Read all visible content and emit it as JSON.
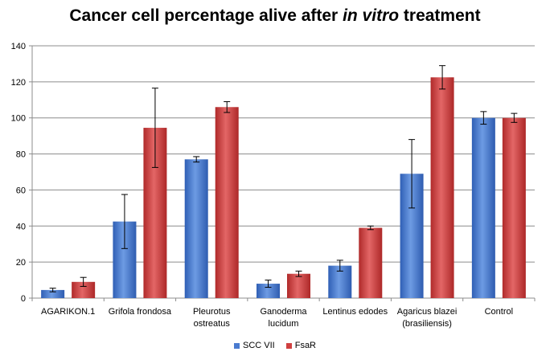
{
  "chart_data": {
    "type": "bar",
    "title_prefix": "Cancer cell percentage alive after ",
    "title_italic": "in vitro",
    "title_suffix": " treatment",
    "xlabel": "",
    "ylabel": "",
    "ylim": [
      0,
      140
    ],
    "yticks": [
      0,
      20,
      40,
      60,
      80,
      100,
      120,
      140
    ],
    "grid": true,
    "legend_position": "bottom",
    "categories": [
      [
        "AGARIKON.1"
      ],
      [
        "Grifola frondosa"
      ],
      [
        "Pleurotus",
        "ostreatus"
      ],
      [
        "Ganoderma",
        "lucidum"
      ],
      [
        "Lentinus edodes"
      ],
      [
        "Agaricus blazei",
        "(brasiliensis)"
      ],
      [
        "Control"
      ]
    ],
    "series": [
      {
        "name": "SCC VII",
        "color": "#4a7bd0",
        "values": [
          4.5,
          42.5,
          77,
          8,
          18,
          69,
          100
        ],
        "errors": [
          1,
          15,
          1.5,
          2,
          3,
          19,
          3.5
        ]
      },
      {
        "name": "FsaR",
        "color": "#d04040",
        "values": [
          9,
          94.5,
          106,
          13.5,
          39,
          122.5,
          100
        ],
        "errors": [
          2.5,
          22,
          3,
          1.5,
          1,
          6.5,
          2.5
        ]
      }
    ]
  }
}
